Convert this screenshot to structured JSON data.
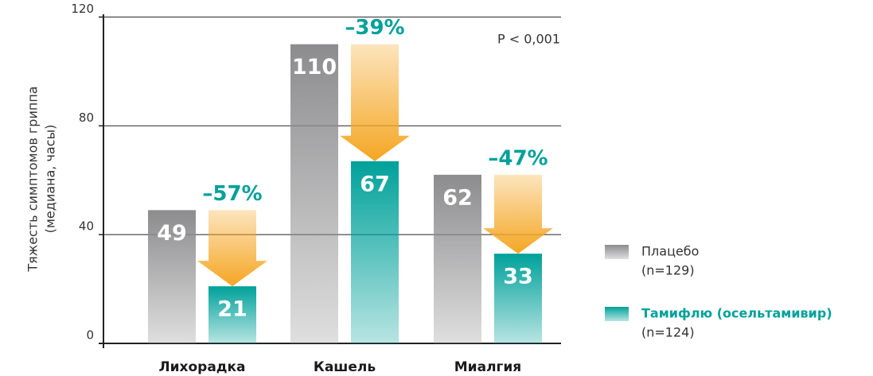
{
  "chart_data": {
    "type": "bar",
    "ylabel": [
      "Тяжесть симптомов гриппа",
      "(медиана, часы)"
    ],
    "categories": [
      "Лихорадка",
      "Кашель",
      "Миалгия"
    ],
    "series": [
      {
        "name": "Плацебо",
        "sample": "(n=129)",
        "color": "#8c8c8e",
        "values": [
          49,
          110,
          62
        ]
      },
      {
        "name": "Тамифлю (осельтамивир)",
        "sample": "(n=124)",
        "color": "#00a19a",
        "values": [
          21,
          67,
          33
        ]
      }
    ],
    "reductions": [
      "–57%",
      "–39%",
      "–47%"
    ],
    "reduction_color": "#f5a623",
    "annotation": "P < 0,001",
    "ylim": [
      0,
      121
    ],
    "yticks": [
      0,
      40,
      80,
      120
    ],
    "grid": true
  }
}
